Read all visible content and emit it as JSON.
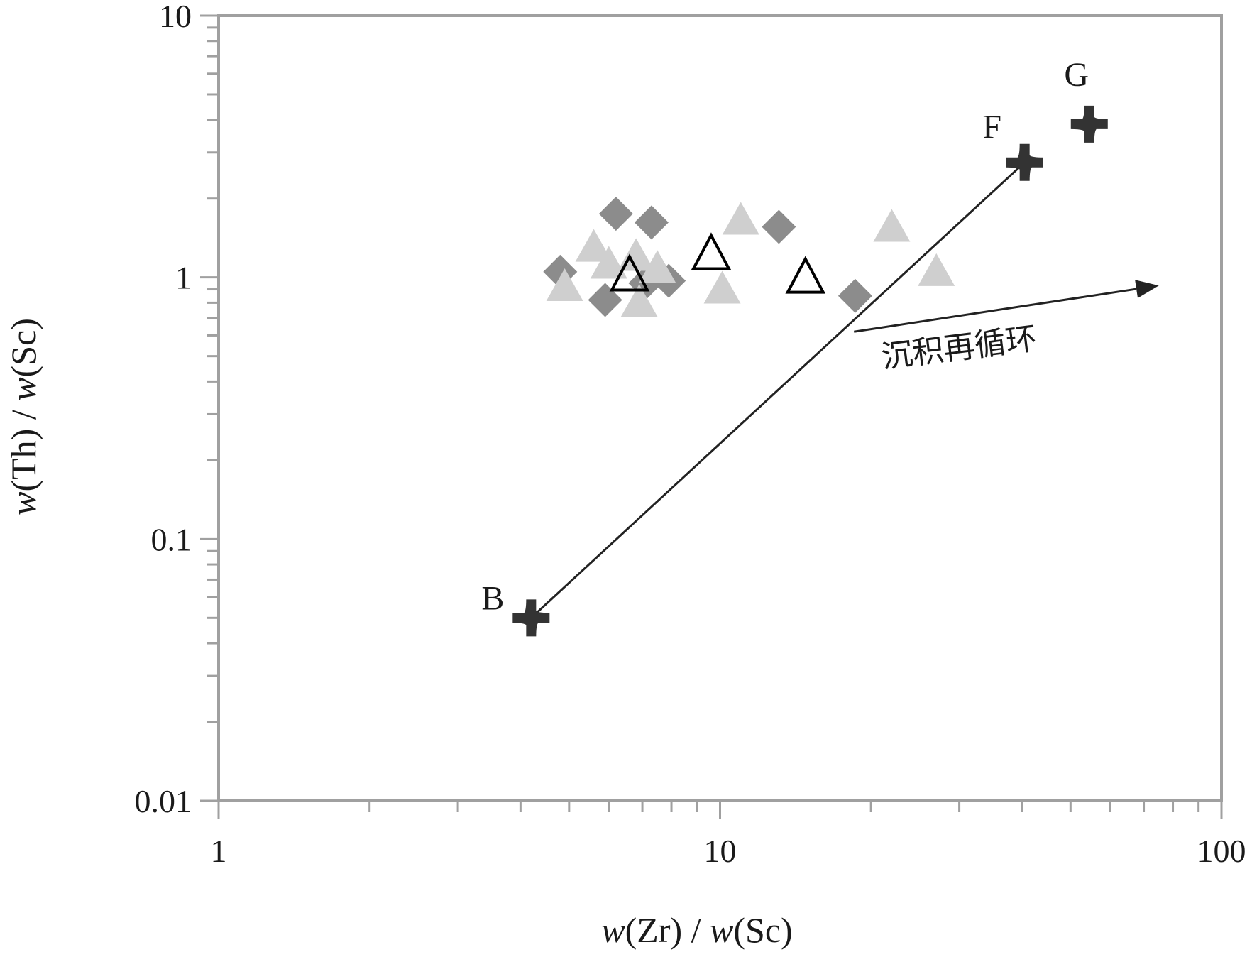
{
  "chart_data": {
    "type": "scatter",
    "x_scale": "log",
    "y_scale": "log",
    "xlim": [
      1,
      100
    ],
    "ylim": [
      0.01,
      10
    ],
    "x_ticks": [
      "1",
      "10",
      "100"
    ],
    "y_ticks": [
      "0.01",
      "0.1",
      "1",
      "10"
    ],
    "xlabel": {
      "w1": "w",
      "p1": "(Zr) / ",
      "w2": "w",
      "p2": "(Sc)"
    },
    "ylabel": {
      "w1": "w",
      "p1": "(Th) / ",
      "w2": "w",
      "p2": "(Sc)"
    },
    "grid": false,
    "legend": "none",
    "colors": {
      "axis": "#a0a0a0",
      "diamond": "#8c8c8c",
      "light_triangle": "#cfcfcf",
      "open_triangle": "#000000",
      "endmember": "#333333",
      "line": "#222222"
    },
    "series": [
      {
        "marker": "diamond",
        "x": [
          4.8,
          6.2,
          7.3,
          13.1,
          5.9,
          7.9,
          18.6,
          7.1
        ],
        "y": [
          1.05,
          1.75,
          1.62,
          1.56,
          0.82,
          0.97,
          0.85,
          0.95
        ]
      },
      {
        "marker": "light-triangle",
        "x": [
          5.6,
          6.0,
          6.8,
          7.5,
          4.9,
          6.9,
          10.1,
          11.0,
          22.0,
          27.0
        ],
        "y": [
          1.3,
          1.12,
          1.2,
          1.08,
          0.92,
          0.8,
          0.9,
          1.65,
          1.55,
          1.05
        ]
      },
      {
        "marker": "open-triangle",
        "x": [
          6.6,
          9.6,
          14.8
        ],
        "y": [
          1.02,
          1.23,
          1.0
        ]
      },
      {
        "marker": "plus",
        "points": [
          {
            "label": "B",
            "x": 4.2,
            "y": 0.05
          },
          {
            "label": "F",
            "x": 40.5,
            "y": 2.75
          },
          {
            "label": "G",
            "x": 54.5,
            "y": 3.85
          }
        ]
      }
    ],
    "trend_line": {
      "from": {
        "x": 4.2,
        "y": 0.05
      },
      "to": {
        "x": 40.5,
        "y": 2.75
      }
    },
    "arrow": {
      "from": {
        "x": 18.5,
        "y": 0.62
      },
      "to": {
        "x": 75,
        "y": 0.93
      }
    },
    "annotation": "沉积再循环"
  }
}
